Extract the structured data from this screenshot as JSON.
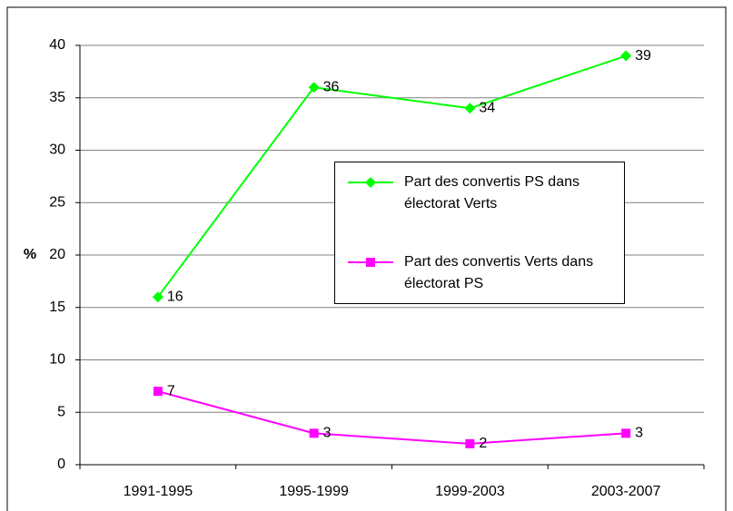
{
  "chart_data": {
    "type": "line",
    "y_label": "%",
    "categories": [
      "1991-1995",
      "1995-1999",
      "1999-2003",
      "2003-2007"
    ],
    "series": [
      {
        "name": "Part des convertis PS dans électorat Verts",
        "color": "#00ff00",
        "marker": "diamond",
        "values": [
          16,
          36,
          34,
          39
        ]
      },
      {
        "name": "Part des convertis Verts dans électorat PS",
        "color": "#ff00ff",
        "marker": "square",
        "values": [
          7,
          3,
          2,
          3
        ]
      }
    ],
    "ylim": [
      0,
      40
    ],
    "yticks": [
      0,
      5,
      10,
      15,
      20,
      25,
      30,
      35,
      40
    ],
    "grid": true,
    "legend": "right"
  }
}
